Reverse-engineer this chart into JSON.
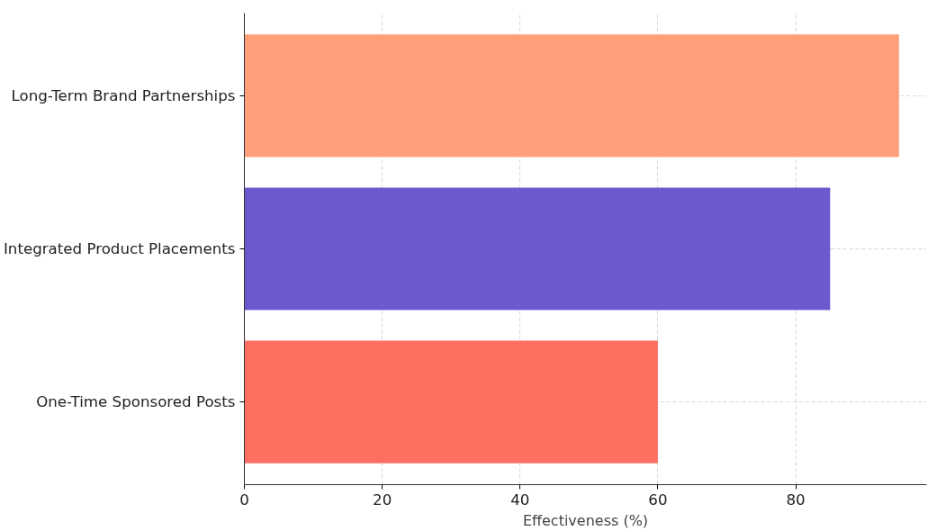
{
  "chart_data": {
    "type": "bar",
    "orientation": "horizontal",
    "xlabel": "Effectiveness (%)",
    "categories": [
      "Long-Term Brand Partnerships",
      "Integrated Product Placements",
      "One-Time Sponsored Posts"
    ],
    "values": [
      95,
      85,
      60
    ],
    "colors": [
      "#ffa07a",
      "#6a5acd",
      "#ff6f61"
    ],
    "xlim": [
      0,
      99
    ],
    "xticks": [
      0,
      20,
      40,
      60,
      80
    ],
    "grid": true
  }
}
